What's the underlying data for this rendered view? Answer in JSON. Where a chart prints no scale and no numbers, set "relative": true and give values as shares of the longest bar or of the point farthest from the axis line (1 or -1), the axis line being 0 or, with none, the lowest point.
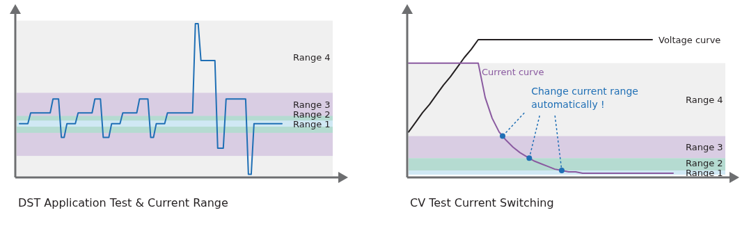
{
  "chart_data": [
    {
      "type": "line",
      "relative": true,
      "title": "DST Application Test & Current Range",
      "categories": [
        null,
        null,
        null,
        null,
        null,
        null,
        null,
        null,
        null,
        null,
        null,
        null,
        null,
        null,
        null,
        null,
        null,
        null,
        null,
        null,
        null,
        null,
        null,
        null,
        null,
        null,
        null,
        null,
        null,
        null,
        null,
        null,
        null,
        null,
        null,
        null,
        null,
        null,
        null,
        null,
        null,
        null,
        null,
        null,
        null,
        null,
        null,
        null,
        null,
        null,
        null,
        null,
        null,
        null,
        null,
        null,
        null,
        null,
        null,
        null,
        null,
        null,
        null,
        null,
        null,
        null,
        null,
        null,
        null,
        null,
        null,
        null,
        null,
        null,
        null,
        null,
        null,
        null,
        null,
        null,
        null,
        null,
        null,
        null,
        null,
        null,
        null,
        null,
        null,
        null,
        null,
        null,
        null,
        null,
        null
      ],
      "series": [
        {
          "color": "#1f6fb5",
          "values": [
            0.35,
            0.35,
            0.35,
            0.35,
            0.42,
            0.42,
            0.42,
            0.42,
            0.42,
            0.42,
            0.42,
            0.42,
            0.51,
            0.51,
            0.51,
            0.26,
            0.26,
            0.35,
            0.35,
            0.35,
            0.35,
            0.42,
            0.42,
            0.42,
            0.42,
            0.42,
            0.42,
            0.51,
            0.51,
            0.51,
            0.26,
            0.26,
            0.26,
            0.35,
            0.35,
            0.35,
            0.35,
            0.42,
            0.42,
            0.42,
            0.42,
            0.42,
            0.42,
            0.51,
            0.51,
            0.51,
            0.51,
            0.26,
            0.26,
            0.35,
            0.35,
            0.35,
            0.35,
            0.42,
            0.42,
            0.42,
            0.42,
            0.42,
            0.42,
            0.42,
            0.42,
            0.42,
            0.42,
            1,
            1,
            0.76,
            0.76,
            0.76,
            0.76,
            0.76,
            0.76,
            0.19,
            0.19,
            0.19,
            0.51,
            0.51,
            0.51,
            0.51,
            0.51,
            0.51,
            0.51,
            0.51,
            0.02,
            0.02,
            0.35,
            0.35,
            0.35,
            0.35,
            0.35,
            0.35,
            0.35,
            0.35,
            0.35,
            0.35,
            0.35
          ]
        }
      ],
      "bands": [
        {
          "axis": "y",
          "from": 0.01,
          "to": 1.02,
          "label": "Range 4",
          "color": "#f0f0f0"
        },
        {
          "axis": "y",
          "from": 0.14,
          "to": 0.55,
          "label": "Range 3",
          "color": "#d9cde3"
        },
        {
          "axis": "y",
          "from": 0.29,
          "to": 0.4,
          "label": "Range 2",
          "color": "#b5dbd1"
        },
        {
          "axis": "y",
          "from": 0.33,
          "to": 0.37,
          "label": "Range 1",
          "color": "#d0e8f4"
        }
      ]
    },
    {
      "type": "line",
      "relative": true,
      "title": "CV Test Current Switching",
      "annotations": [
        "Change current range automatically !"
      ],
      "categories": [
        null,
        null,
        null,
        null,
        null,
        null,
        null,
        null,
        null,
        null,
        null,
        null,
        null,
        null,
        null,
        null,
        null,
        null,
        null,
        null,
        null,
        null,
        null,
        null,
        null,
        null,
        null,
        null,
        null,
        null,
        null,
        null,
        null,
        null,
        null,
        null,
        null,
        null,
        null
      ],
      "series": [
        {
          "name": "Voltage curve",
          "color": "#231f20",
          "values": [
            0.33,
            0.4,
            0.47,
            0.53,
            0.6,
            0.67,
            0.73,
            0.8,
            0.87,
            0.93,
            1,
            1,
            1,
            1,
            1,
            1,
            1,
            1,
            1,
            1,
            1,
            1,
            1,
            1,
            1,
            1,
            1,
            1,
            1,
            1,
            1,
            1,
            1,
            1,
            1,
            1,
            null,
            null,
            null
          ]
        },
        {
          "name": "Current curve",
          "color": "#8a5aa0",
          "values": [
            0.83,
            0.83,
            0.83,
            0.83,
            0.83,
            0.83,
            0.83,
            0.83,
            0.83,
            0.83,
            0.83,
            0.58,
            0.43,
            0.33,
            0.27,
            0.22,
            0.18,
            0.15,
            0.12,
            0.1,
            0.08,
            0.06,
            0.05,
            0.04,
            0.04,
            0.03,
            0.03,
            0.03,
            0.03,
            0.03,
            0.03,
            0.03,
            0.03,
            0.03,
            0.03,
            0.03,
            0.03,
            0.03,
            0.03
          ]
        }
      ],
      "bands": [
        {
          "axis": "y",
          "from": 0.02,
          "to": 0.83,
          "label": "Range 4",
          "color": "#f0f0f0"
        },
        {
          "axis": "y",
          "from": 0.14,
          "to": 0.3,
          "label": "Range 3",
          "color": "#d9cde3"
        },
        {
          "axis": "y",
          "from": 0.05,
          "to": 0.14,
          "label": "Range 2",
          "color": "#b5dbd1"
        },
        {
          "axis": "y",
          "from": 0.02,
          "to": 0.05,
          "label": "Range 1",
          "color": "#d0e8f4"
        }
      ]
    }
  ]
}
